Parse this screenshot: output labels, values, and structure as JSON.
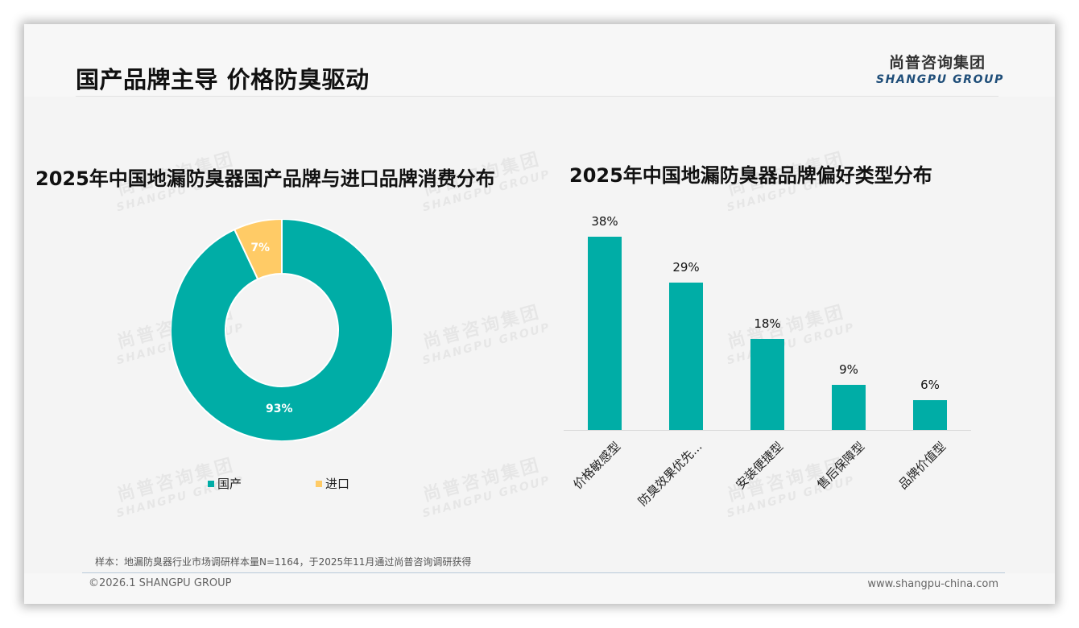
{
  "header": {
    "title": "国产品牌主导 价格防臭驱动",
    "logo": {
      "cn": "尚普咨询集团",
      "en": "SHANGPU GROUP"
    }
  },
  "watermark": {
    "cn": "尚普咨询集团",
    "en": "SHANGPU GROUP"
  },
  "colors": {
    "teal": "#00ada6",
    "yellow": "#ffcb66",
    "accent_blue": "#1f4e79"
  },
  "left_chart": {
    "title": "2025年中国地漏防臭器国产品牌与进口品牌消费分布",
    "slices": [
      {
        "label": "国产",
        "value_label": "93%",
        "color": "#00ada6"
      },
      {
        "label": "进口",
        "value_label": "7%",
        "color": "#ffcb66"
      }
    ]
  },
  "right_chart": {
    "title": "2025年中国地漏防臭器品牌偏好类型分布",
    "bars": [
      {
        "label": "价格敏感型",
        "value_label": "38%"
      },
      {
        "label": "防臭效果优先...",
        "value_label": "29%"
      },
      {
        "label": "安装便捷型",
        "value_label": "18%"
      },
      {
        "label": "售后保障型",
        "value_label": "9%"
      },
      {
        "label": "品牌价值型",
        "value_label": "6%"
      }
    ]
  },
  "chart_data": [
    {
      "type": "pie",
      "subtype": "donut",
      "title": "2025年中国地漏防臭器国产品牌与进口品牌消费分布",
      "categories": [
        "国产",
        "进口"
      ],
      "values": [
        93,
        7
      ],
      "unit": "%",
      "colors": [
        "#00ada6",
        "#ffcb66"
      ],
      "legend_position": "bottom"
    },
    {
      "type": "bar",
      "title": "2025年中国地漏防臭器品牌偏好类型分布",
      "categories": [
        "价格敏感型",
        "防臭效果优先...",
        "安装便捷型",
        "售后保障型",
        "品牌价值型"
      ],
      "values": [
        38,
        29,
        18,
        9,
        6
      ],
      "unit": "%",
      "xlabel": "",
      "ylabel": "",
      "ylim": [
        0,
        40
      ],
      "grid": false,
      "color": "#00ada6",
      "data_labels": true
    }
  ],
  "footer": {
    "source": "样本：地漏防臭器行业市场调研样本量N=1164，于2025年11月通过尚普咨询调研获得",
    "copyright": "©2026.1 SHANGPU GROUP",
    "website": "www.shangpu-china.com"
  }
}
